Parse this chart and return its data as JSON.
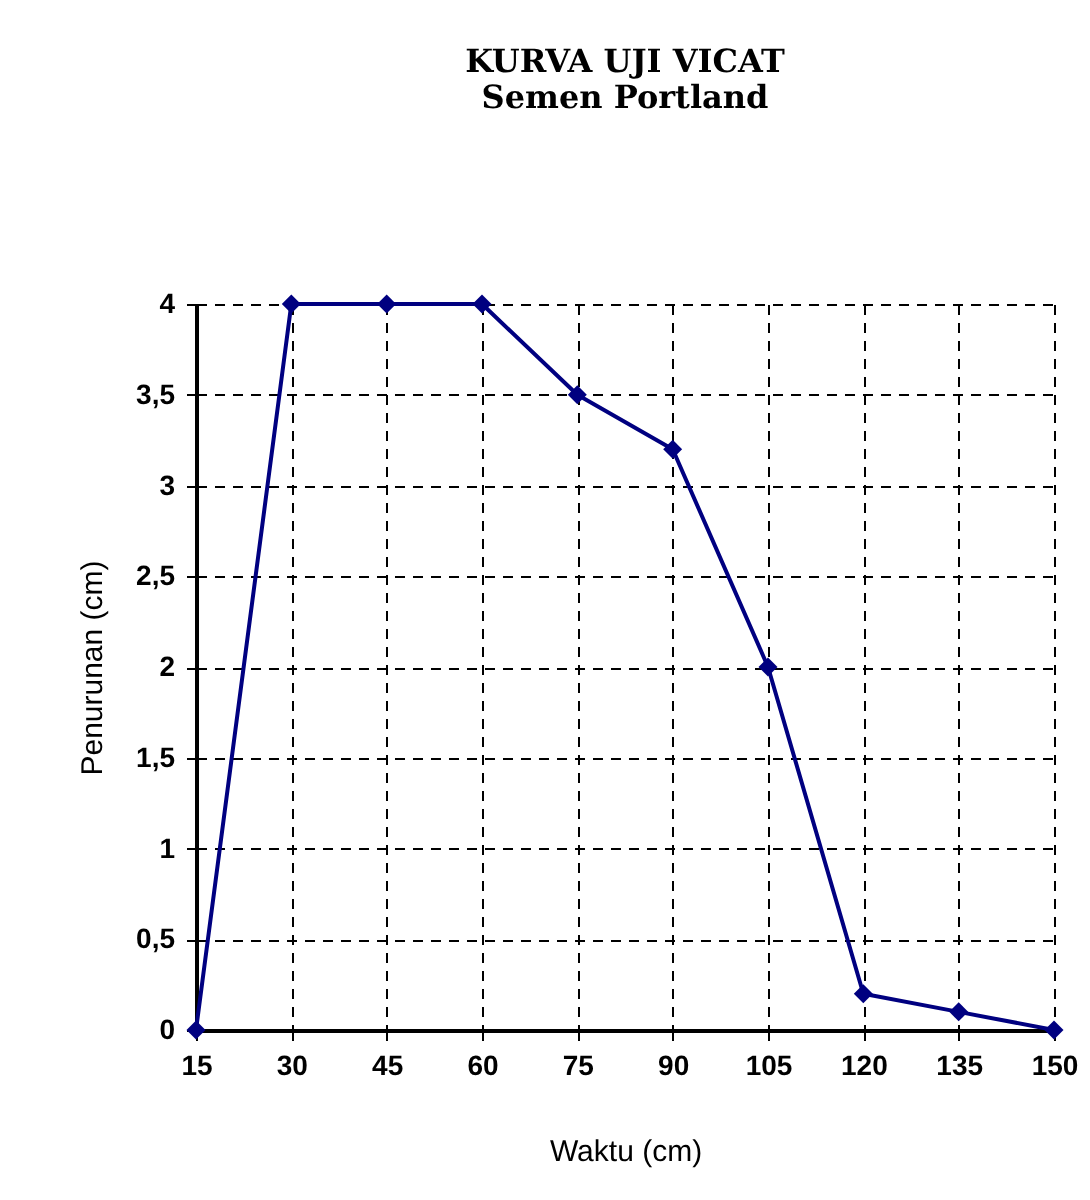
{
  "chart_data": {
    "type": "line",
    "title": "KURVA UJI VICAT",
    "subtitle": "Semen Portland",
    "xlabel": "Waktu (cm)",
    "ylabel": "Penurunan  (cm)",
    "x": [
      15,
      30,
      45,
      60,
      75,
      90,
      105,
      120,
      135,
      150
    ],
    "series": [
      {
        "color": "#000080",
        "values": [
          0,
          4,
          4,
          4,
          3.5,
          3.2,
          2,
          0.2,
          0.1,
          0
        ]
      }
    ],
    "xlim": [
      15,
      150
    ],
    "xticks": [
      15,
      30,
      45,
      60,
      75,
      90,
      105,
      120,
      135,
      150
    ],
    "ylim": [
      0,
      4
    ],
    "yticks": [
      0,
      {
        "value": 0.5,
        "label": "0,5"
      },
      1,
      {
        "value": 1.5,
        "label": "1,5"
      },
      2,
      {
        "value": 2.5,
        "label": "2,5"
      },
      3,
      {
        "value": 3.5,
        "label": "3,5"
      },
      4
    ],
    "grid": true,
    "marker": "diamond",
    "line_style": "solid",
    "legend": false
  }
}
